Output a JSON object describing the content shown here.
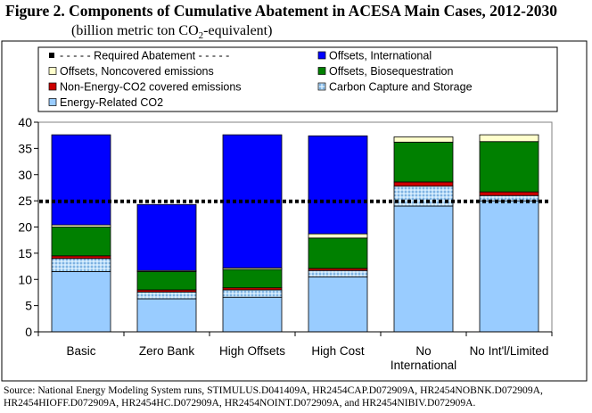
{
  "figure": {
    "title": "Figure 2.  Components of Cumulative Abatement in ACESA Main Cases, 2012-2030",
    "subtitle_before": "(billion metric ton CO",
    "subtitle_sub": "2",
    "subtitle_after": "-equivalent)",
    "source_line1": "Source:  National Energy Modeling System runs, STIMULUS.D041409A, HR2454CAP.D072909A, HR2454NOBNK.D072909A,",
    "source_line2": "HR2454HIOFF.D072909A, HR2454HC.D072909A, HR2454NOINT.D072909A, and HR2454NIBIV.D072909A."
  },
  "chart_data": {
    "type": "bar",
    "stacked": true,
    "categories": [
      "Basic",
      "Zero Bank",
      "High Offsets",
      "High Cost",
      "No International",
      "No Int'l/Limited"
    ],
    "category_lines": [
      [
        "Basic"
      ],
      [
        "Zero Bank"
      ],
      [
        "High Offsets"
      ],
      [
        "High Cost"
      ],
      [
        "No",
        "International"
      ],
      [
        "No Int'l/Limited"
      ]
    ],
    "ylim": [
      0,
      40
    ],
    "yticks": [
      0,
      5,
      10,
      15,
      20,
      25,
      30,
      35,
      40
    ],
    "grid": false,
    "legend_position": "top",
    "series": [
      {
        "name": "Energy-Related CO2",
        "color": "#99ccff",
        "pattern": "solid",
        "values": [
          11.5,
          6.3,
          6.6,
          10.5,
          24.0,
          25.0
        ]
      },
      {
        "name": "Carbon Capture and Storage",
        "color": "#b8dcf8",
        "pattern": "dots",
        "values": [
          2.5,
          1.3,
          1.4,
          1.2,
          3.8,
          1.0
        ]
      },
      {
        "name": "Non-Energy-CO2 covered emissions",
        "color": "#cc0000",
        "pattern": "solid",
        "values": [
          0.5,
          0.4,
          0.4,
          0.4,
          0.8,
          0.7
        ]
      },
      {
        "name": "Offsets, Biosequestration",
        "color": "#008000",
        "pattern": "solid",
        "values": [
          5.5,
          3.5,
          3.5,
          5.8,
          7.6,
          9.6
        ]
      },
      {
        "name": "Offsets, Noncovered emissions",
        "color": "#ffffcc",
        "pattern": "solid",
        "values": [
          0.4,
          0.2,
          0.3,
          0.8,
          1.0,
          1.3
        ]
      },
      {
        "name": "Offsets, International",
        "color": "#0000ff",
        "pattern": "solid",
        "values": [
          17.2,
          12.6,
          25.4,
          18.7,
          0.0,
          0.0
        ]
      }
    ],
    "reference_line": {
      "name": "- - - - - Required Abatement - - - - -",
      "value": 24.9
    }
  }
}
